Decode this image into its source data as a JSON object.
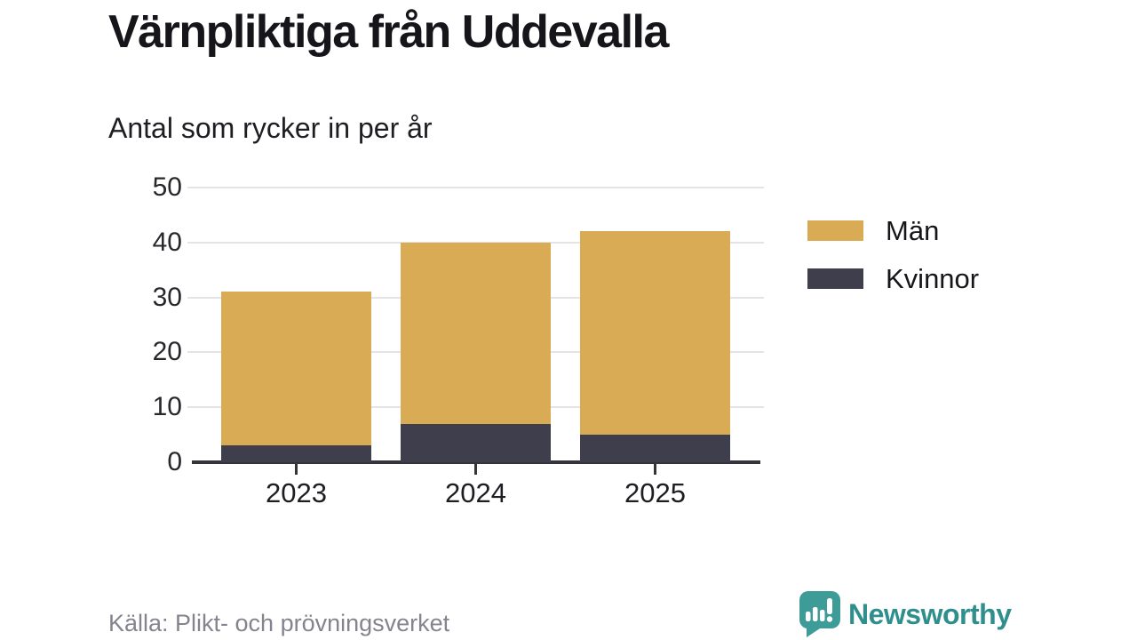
{
  "header": {
    "title": "Värnpliktiga från Uddevalla",
    "subtitle": "Antal som rycker in per år"
  },
  "chart_data": {
    "type": "bar",
    "stacked": true,
    "title": "Värnpliktiga från Uddevalla",
    "subtitle": "Antal som rycker in per år",
    "categories": [
      "2023",
      "2024",
      "2025"
    ],
    "series": [
      {
        "name": "Män",
        "color": "#d9ab55",
        "values": [
          28,
          33,
          37
        ]
      },
      {
        "name": "Kvinnor",
        "color": "#3f3e4c",
        "values": [
          3,
          7,
          5
        ]
      }
    ],
    "stack_totals": [
      31,
      40,
      42
    ],
    "ylim": [
      0,
      50
    ],
    "yticks": [
      0,
      10,
      20,
      30,
      40,
      50
    ],
    "xlabel": "",
    "ylabel": "",
    "grid": "horizontal",
    "legend_position": "right"
  },
  "footer": {
    "source": "Källa: Plikt- och prövningsverket",
    "brand_name": "Newsworthy",
    "brand_icon": "newsworthy-speech-bubble-bars-icon",
    "brand_text_color": "#2e8f8c",
    "brand_icon_color": "#3d9b98"
  },
  "colors": {
    "men_bar": "#d9ab55",
    "women_bar": "#3f3e4c",
    "axis": "#35343b",
    "gridline": "#e4e4e6",
    "source_text": "#84848e"
  }
}
